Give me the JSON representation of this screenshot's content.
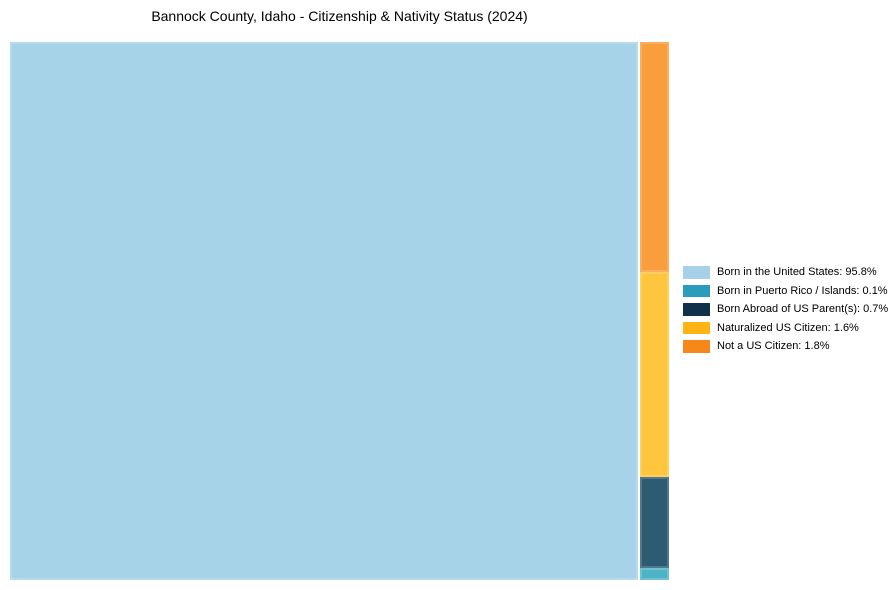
{
  "title": "Bannock County, Idaho - Citizenship & Nativity Status (2024)",
  "chart_data": {
    "type": "treemap",
    "title": "Bannock County, Idaho - Citizenship & Nativity Status (2024)",
    "value_unit": "%",
    "legend_position": "right",
    "grid": false,
    "series": [
      {
        "name": "Born in the United States",
        "value": 95.8
      },
      {
        "name": "Born in Puerto Rico / Islands",
        "value": 0.1
      },
      {
        "name": "Born Abroad of US Parent(s)",
        "value": 0.7
      },
      {
        "name": "Naturalized US Citizen",
        "value": 1.6
      },
      {
        "name": "Not a US Citizen",
        "value": 1.8
      }
    ]
  },
  "cells": [
    {
      "name": "Born in the United States",
      "color": "#A7D3E8"
    },
    {
      "name": "Not a US Citizen",
      "color": "#F99D3D"
    },
    {
      "name": "Naturalized US Citizen",
      "color": "#FDC63C"
    },
    {
      "name": "Born Abroad of US Parent(s)",
      "color": "#2E5B74"
    },
    {
      "name": "Born in Puerto Rico / Islands",
      "color": "#4DB4C6"
    }
  ],
  "legend": {
    "items": [
      {
        "text": "Born in the United States: 95.8%",
        "color": "#A6D1E6"
      },
      {
        "text": "Born in Puerto Rico / Islands: 0.1%",
        "color": "#2B9DBC"
      },
      {
        "text": "Born Abroad of US Parent(s): 0.7%",
        "color": "#0F3249"
      },
      {
        "text": "Naturalized US Citizen: 1.6%",
        "color": "#FDB515"
      },
      {
        "text": "Not a US Citizen: 1.8%",
        "color": "#F5871B"
      }
    ]
  },
  "colors": {
    "background": "#FFFFFF",
    "title_text": "#000000",
    "legend_text": "#000000"
  }
}
